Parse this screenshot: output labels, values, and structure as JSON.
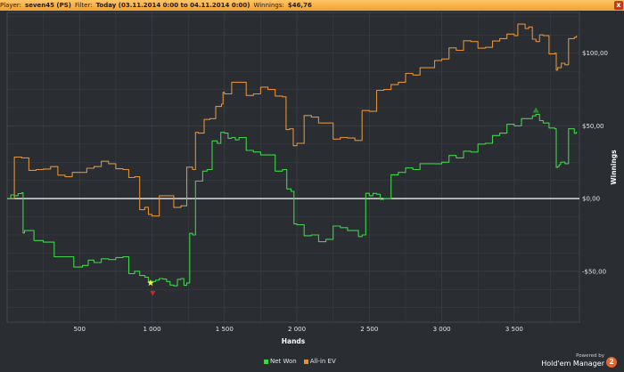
{
  "header": {
    "player_label": "Player:",
    "player_value": "seven45 (PS)",
    "filter_label": "Filter:",
    "filter_value": "Today (03.11.2014 0:00 to 04.11.2014 0:00)",
    "winnings_label": "Winnings:",
    "winnings_value": "$46,76",
    "close_label": "x"
  },
  "brand": {
    "powered_by": "Powered by",
    "name": "Hold'em Manager",
    "logo_text": "2"
  },
  "colors": {
    "net_won": "#3fd44a",
    "all_in_ev": "#e0913a",
    "zero_line": "#ffffff",
    "grid": "#3b3f44",
    "peak_marker": "#2a8f2a",
    "low_marker_star": "#ffee33",
    "low_marker_triangle": "#e02020"
  },
  "chart_data": {
    "type": "line",
    "xlabel": "Hands",
    "ylabel": "Winnings",
    "xlim": [
      0,
      3950
    ],
    "ylim": [
      -85,
      128
    ],
    "x_ticks": [
      500,
      1000,
      1500,
      2000,
      2500,
      3000,
      3500
    ],
    "x_tick_labels": [
      "500",
      "1 000",
      "1 500",
      "2 000",
      "2 500",
      "3 000",
      "3 500"
    ],
    "y_ticks": [
      100,
      50,
      0,
      -50
    ],
    "y_tick_labels": [
      "$100,00",
      "$50,00",
      "$0,00",
      "-$50,00"
    ],
    "grid": true,
    "legend_position": "bottom-center",
    "series": [
      {
        "name": "Net Won",
        "color": "#3fd44a",
        "x": [
          0,
          50,
          100,
          120,
          250,
          400,
          520,
          600,
          700,
          800,
          880,
          950,
          1000,
          1050,
          1100,
          1150,
          1200,
          1240,
          1280,
          1320,
          1380,
          1450,
          1500,
          1550,
          1600,
          1700,
          1800,
          1900,
          1960,
          2000,
          2100,
          2200,
          2300,
          2400,
          2450,
          2500,
          2550,
          2600,
          2700,
          2800,
          2900,
          3000,
          3100,
          3200,
          3300,
          3400,
          3500,
          3600,
          3650,
          3700,
          3780,
          3800,
          3820,
          3850,
          3900,
          3930
        ],
        "y": [
          0,
          2,
          4,
          -22,
          -30,
          -40,
          -46,
          -44,
          -42,
          -40,
          -50,
          -54,
          -57,
          -55,
          -57,
          -60,
          -55,
          -58,
          -25,
          12,
          20,
          38,
          45,
          42,
          42,
          32,
          30,
          20,
          5,
          -18,
          -25,
          -28,
          -20,
          -22,
          -25,
          2,
          3,
          0,
          18,
          20,
          24,
          25,
          28,
          32,
          38,
          45,
          50,
          55,
          58,
          52,
          48,
          22,
          25,
          24,
          48,
          46
        ]
      },
      {
        "name": "All-in EV",
        "color": "#e0913a",
        "x": [
          0,
          100,
          200,
          300,
          400,
          500,
          600,
          700,
          800,
          880,
          950,
          1000,
          1100,
          1200,
          1280,
          1320,
          1400,
          1480,
          1500,
          1600,
          1700,
          1800,
          1900,
          1950,
          2000,
          2100,
          2200,
          2300,
          2400,
          2500,
          2600,
          2700,
          2800,
          2900,
          3000,
          3100,
          3200,
          3300,
          3400,
          3500,
          3550,
          3600,
          3650,
          3700,
          3780,
          3800,
          3850,
          3900,
          3930
        ],
        "y": [
          0,
          28,
          20,
          22,
          15,
          18,
          22,
          24,
          20,
          15,
          -6,
          -12,
          2,
          -5,
          20,
          45,
          55,
          65,
          72,
          80,
          72,
          75,
          70,
          48,
          38,
          56,
          52,
          42,
          40,
          60,
          75,
          80,
          85,
          90,
          96,
          102,
          108,
          104,
          110,
          112,
          120,
          118,
          108,
          112,
          100,
          90,
          92,
          110,
          112
        ]
      }
    ],
    "annotations": [
      {
        "type": "peak-marker",
        "series": "Net Won",
        "x": 3650,
        "y": 61
      },
      {
        "type": "low-marker-star",
        "series": "Net Won",
        "x": 990,
        "y": -58
      },
      {
        "type": "low-marker-triangle",
        "series": "Net Won",
        "x": 1005,
        "y": -65
      }
    ]
  }
}
